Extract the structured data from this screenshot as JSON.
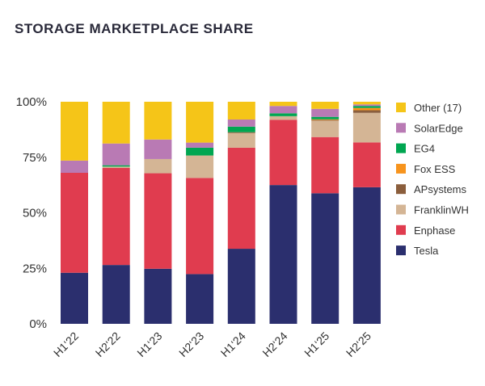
{
  "chart_data": {
    "type": "bar",
    "stacked": true,
    "title": "STORAGE MARKETPLACE SHARE",
    "xlabel": "",
    "ylabel": "",
    "ylim": [
      0,
      100
    ],
    "yticks": [
      "0%",
      "25%",
      "50%",
      "75%",
      "100%"
    ],
    "grid": false,
    "legend_position": "right",
    "categories": [
      "H1‘22",
      "H2‘22",
      "H1‘23",
      "H2‘23",
      "H1‘24",
      "H2‘24",
      "H1‘25",
      "H2‘25"
    ],
    "series": [
      {
        "name": "Tesla",
        "color": "#2B2F6E",
        "values": [
          23,
          26.5,
          24.8,
          22.4,
          33.8,
          62.5,
          58.8,
          61.5
        ]
      },
      {
        "name": "Enphase",
        "color": "#E03C4F",
        "values": [
          45,
          43.7,
          43,
          43.3,
          45.5,
          29.4,
          25.3,
          20.2
        ]
      },
      {
        "name": "FranklinWH",
        "color": "#D4B595",
        "values": [
          0,
          0.6,
          6.4,
          10.1,
          6.6,
          1.6,
          7.4,
          13.3
        ]
      },
      {
        "name": "APsystems",
        "color": "#8B5E3C",
        "values": [
          0,
          0,
          0,
          0,
          0.4,
          0,
          0.3,
          1.2
        ]
      },
      {
        "name": "Fox ESS",
        "color": "#F7941D",
        "values": [
          0,
          0,
          0,
          0,
          0,
          0,
          0.3,
          1.0
        ]
      },
      {
        "name": "EG4",
        "color": "#00A651",
        "values": [
          0,
          0.6,
          0,
          3.5,
          2.5,
          1.3,
          1.1,
          0.9
        ]
      },
      {
        "name": "SolarEdge",
        "color": "#B97AB4",
        "values": [
          5.5,
          9.8,
          8.8,
          2.3,
          3.2,
          3.3,
          3.6,
          0.7
        ]
      },
      {
        "name": "Other (17)",
        "color": "#F5C518",
        "values": [
          26.5,
          18.8,
          17,
          18.4,
          8,
          1.9,
          3.2,
          1.2
        ]
      }
    ]
  }
}
